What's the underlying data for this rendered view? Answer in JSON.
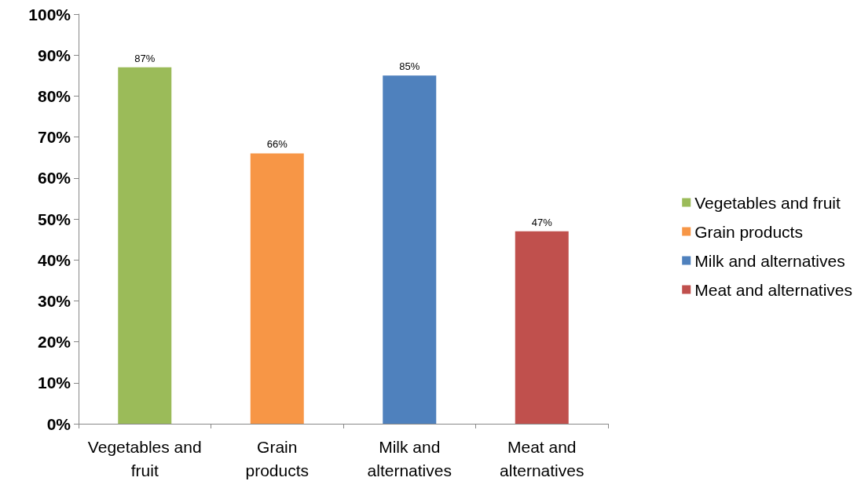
{
  "chart_data": {
    "type": "bar",
    "categories": [
      "Vegetables and fruit",
      "Grain products",
      "Milk and alternatives",
      "Meat and alternatives"
    ],
    "series": [
      {
        "name": "Vegetables and fruit",
        "color": "#9bbb59",
        "values": [
          87,
          null,
          null,
          null
        ],
        "value_labels": [
          "87%",
          null,
          null,
          null
        ]
      },
      {
        "name": "Grain products",
        "color": "#f79646",
        "values": [
          null,
          66,
          null,
          null
        ],
        "value_labels": [
          null,
          "66%",
          null,
          null
        ]
      },
      {
        "name": "Milk and alternatives",
        "color": "#4f81bd",
        "values": [
          null,
          null,
          85,
          null
        ],
        "value_labels": [
          null,
          null,
          "85%",
          null
        ]
      },
      {
        "name": "Meat and alternatives",
        "color": "#c0504d",
        "values": [
          null,
          null,
          null,
          47
        ],
        "value_labels": [
          null,
          null,
          null,
          "47%"
        ]
      }
    ],
    "ylim": [
      0,
      100
    ],
    "yticks": [
      {
        "value": 0,
        "label": "0%"
      },
      {
        "value": 10,
        "label": "10%"
      },
      {
        "value": 20,
        "label": "20%"
      },
      {
        "value": 30,
        "label": "30%"
      },
      {
        "value": 40,
        "label": "40%"
      },
      {
        "value": 50,
        "label": "50%"
      },
      {
        "value": 60,
        "label": "60%"
      },
      {
        "value": 70,
        "label": "70%"
      },
      {
        "value": 80,
        "label": "80%"
      },
      {
        "value": 90,
        "label": "90%"
      },
      {
        "value": 100,
        "label": "100%"
      }
    ],
    "grid": false,
    "legend": "right"
  }
}
